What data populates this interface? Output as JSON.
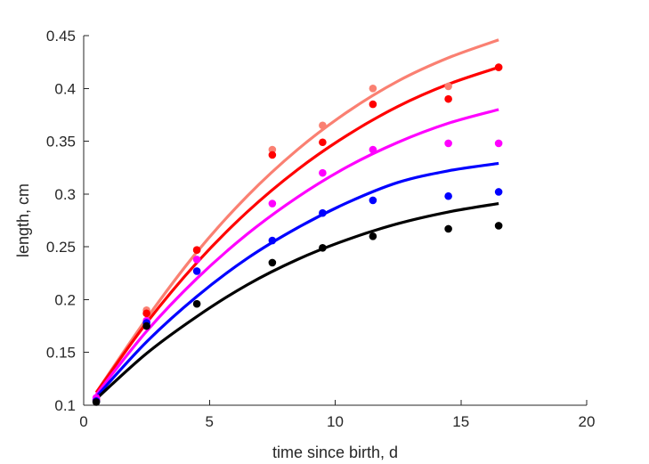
{
  "chart_data": {
    "type": "scatter",
    "title": "",
    "xlabel": "time since birth, d",
    "ylabel": "length, cm",
    "xlim": [
      0,
      20
    ],
    "ylim": [
      0.1,
      0.45
    ],
    "xticks": [
      0,
      5,
      10,
      15,
      20
    ],
    "xtick_labels": [
      "0",
      "5",
      "10",
      "15",
      "20"
    ],
    "yticks": [
      0.1,
      0.15,
      0.2,
      0.25,
      0.3,
      0.35,
      0.4,
      0.45
    ],
    "ytick_labels": [
      "0.1",
      "0.15",
      "0.2",
      "0.25",
      "0.3",
      "0.35",
      "0.4",
      "0.45"
    ],
    "grid": false,
    "legend": false,
    "x": [
      0.5,
      2.5,
      4.5,
      7.5,
      9.5,
      11.5,
      14.5,
      16.5
    ],
    "series": [
      {
        "color": "#fa8072",
        "points": [
          0.105,
          0.19,
          0.247,
          0.342,
          0.365,
          0.4,
          0.402,
          0.42
        ],
        "fit_x": [
          0.5,
          2.5,
          4.5,
          6.5,
          8.5,
          10.5,
          12.5,
          14.5,
          16.5
        ],
        "fit_y": [
          0.112,
          0.182,
          0.245,
          0.298,
          0.342,
          0.378,
          0.407,
          0.429,
          0.446
        ]
      },
      {
        "color": "#ff0000",
        "points": [
          0.105,
          0.187,
          0.247,
          0.337,
          0.349,
          0.385,
          0.39,
          0.42
        ],
        "fit_x": [
          0.5,
          2.5,
          4.5,
          6.5,
          8.5,
          10.5,
          12.5,
          14.5,
          16.5
        ],
        "fit_y": [
          0.112,
          0.178,
          0.235,
          0.283,
          0.323,
          0.356,
          0.383,
          0.404,
          0.42
        ]
      },
      {
        "color": "#ff00ff",
        "points": [
          0.107,
          0.18,
          0.238,
          0.291,
          0.32,
          0.342,
          0.348,
          0.348
        ],
        "fit_x": [
          0.5,
          2.5,
          4.5,
          6.5,
          8.5,
          10.5,
          12.5,
          14.5,
          16.5
        ],
        "fit_y": [
          0.11,
          0.17,
          0.22,
          0.262,
          0.297,
          0.326,
          0.349,
          0.367,
          0.38
        ]
      },
      {
        "color": "#0000ff",
        "points": [
          0.104,
          0.178,
          0.227,
          0.256,
          0.282,
          0.294,
          0.298,
          0.302
        ],
        "fit_x": [
          0.5,
          2.5,
          4.5,
          6.5,
          8.5,
          10.5,
          12.5,
          14.5,
          16.5
        ],
        "fit_y": [
          0.108,
          0.16,
          0.203,
          0.239,
          0.268,
          0.292,
          0.311,
          0.322,
          0.329
        ]
      },
      {
        "color": "#000000",
        "points": [
          0.103,
          0.175,
          0.196,
          0.235,
          0.249,
          0.26,
          0.267,
          0.27
        ],
        "fit_x": [
          0.5,
          2.5,
          4.5,
          6.5,
          8.5,
          10.5,
          12.5,
          14.5,
          16.5
        ],
        "fit_y": [
          0.106,
          0.149,
          0.184,
          0.214,
          0.238,
          0.257,
          0.272,
          0.283,
          0.291
        ]
      }
    ]
  }
}
